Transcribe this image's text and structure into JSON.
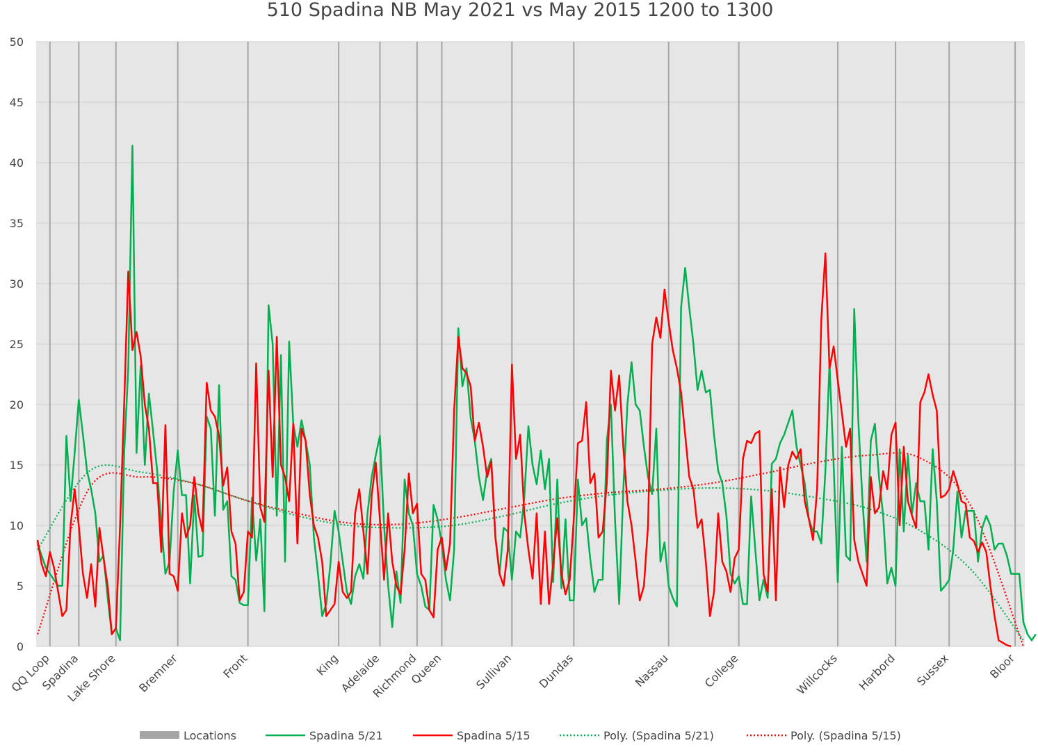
{
  "chart_data": {
    "type": "line",
    "title": "510 Spadina NB May 2021 vs May 2015 1200 to 1300",
    "xlabel": "",
    "ylabel": "",
    "ylim": [
      0,
      50
    ],
    "yticks": [
      0,
      5,
      10,
      15,
      20,
      25,
      30,
      35,
      40,
      45,
      50
    ],
    "grid": true,
    "legend_position": "bottom",
    "x_points": 240,
    "locations": [
      {
        "label": "QQ Loop",
        "index": 3
      },
      {
        "label": "Spadina",
        "index": 10
      },
      {
        "label": "Lake Shore",
        "index": 19
      },
      {
        "label": "Bremner",
        "index": 34
      },
      {
        "label": "Front",
        "index": 51
      },
      {
        "label": "King",
        "index": 73
      },
      {
        "label": "Adelaide",
        "index": 83
      },
      {
        "label": "Richmond",
        "index": 92
      },
      {
        "label": "Queen",
        "index": 98
      },
      {
        "label": "Sullivan",
        "index": 115
      },
      {
        "label": "Dundas",
        "index": 130
      },
      {
        "label": "Nassau",
        "index": 153
      },
      {
        "label": "College",
        "index": 170
      },
      {
        "label": "Willcocks",
        "index": 194
      },
      {
        "label": "Harbord",
        "index": 208
      },
      {
        "label": "Sussex",
        "index": 221
      },
      {
        "label": "Bloor",
        "index": 237
      }
    ],
    "series": [
      {
        "name": "Locations",
        "color": "#a6a6a6",
        "kind": "bar"
      },
      {
        "name": "Spadina 5/21",
        "color": "#00b050",
        "kind": "line",
        "values": [
          8.5,
          7.5,
          6.5,
          6.0,
          5.5,
          5.0,
          5.0,
          17.4,
          12.0,
          16.0,
          20.4,
          17.5,
          14.5,
          13.0,
          11.0,
          7.0,
          7.5,
          4.0,
          1.0,
          1.5,
          0.5,
          16.0,
          23.0,
          41.4,
          16.0,
          23.2,
          15.0,
          20.9,
          17.8,
          14.5,
          10.0,
          6.0,
          7.0,
          12.8,
          16.2,
          12.5,
          12.5,
          5.2,
          12.5,
          7.4,
          7.5,
          19.0,
          18.0,
          10.8,
          21.6,
          11.3,
          12.0,
          5.8,
          5.5,
          3.6,
          3.4,
          3.4,
          12.3,
          7.1,
          10.5,
          2.9,
          28.2,
          25.0,
          10.8,
          24.1,
          7.0,
          25.2,
          18.4,
          16.5,
          18.7,
          17.0,
          15.0,
          9.0,
          6.0,
          2.5,
          3.5,
          6.8,
          11.2,
          9.5,
          7.0,
          4.5,
          3.5,
          5.8,
          6.8,
          5.6,
          11.0,
          14.0,
          15.8,
          17.4,
          10.0,
          5.0,
          1.6,
          6.2,
          3.6,
          13.8,
          11.0,
          10.0,
          6.0,
          5.0,
          3.3,
          3.0,
          11.7,
          10.5,
          8.5,
          5.5,
          3.8,
          8.0,
          26.3,
          21.5,
          23.0,
          18.9,
          17.0,
          14.0,
          12.1,
          14.5,
          15.5,
          9.0,
          6.0,
          9.8,
          9.5,
          5.5,
          9.5,
          9.0,
          12.3,
          18.2,
          15.0,
          13.4,
          16.2,
          13.0,
          15.5,
          5.3,
          13.8,
          4.8,
          10.5,
          3.8,
          3.8,
          13.8,
          10.0,
          10.6,
          7.2,
          4.5,
          5.5,
          5.5,
          17.0,
          20.0,
          10.5,
          3.5,
          12.9,
          20.0,
          23.5,
          20.0,
          19.5,
          16.5,
          14.0,
          12.6,
          18.0,
          7.0,
          8.6,
          5.0,
          4.0,
          3.3,
          28.0,
          31.3,
          28.0,
          25.0,
          21.2,
          22.8,
          21.0,
          21.2,
          17.5,
          14.5,
          13.5,
          10.8,
          6.0,
          5.2,
          5.8,
          3.5,
          3.5,
          12.4,
          8.0,
          3.8,
          5.5,
          4.0,
          15.1,
          15.5,
          16.8,
          17.5,
          18.5,
          19.5,
          16.5,
          15.0,
          13.5,
          10.5,
          9.5,
          9.5,
          8.5,
          14.5,
          23.4,
          15.0,
          5.3,
          16.5,
          7.5,
          7.1,
          27.9,
          18.5,
          12.0,
          7.0,
          17.0,
          18.4,
          14.0,
          10.8,
          5.2,
          6.5,
          5.0,
          16.3,
          9.5,
          15.8,
          11.0,
          13.5,
          12.0,
          12.0,
          8.0,
          16.3,
          12.0,
          4.6,
          5.0,
          5.5,
          8.0,
          12.8,
          9.0,
          11.2,
          11.2,
          11.2,
          7.0,
          9.8,
          10.8,
          10.0,
          8.0,
          8.5,
          8.5,
          7.5,
          6.0,
          6.0,
          6.0,
          2.0,
          1.0,
          0.5,
          1.0
        ]
      },
      {
        "name": "Spadina 5/15",
        "color": "#ff0000",
        "kind": "line",
        "values": [
          8.8,
          6.8,
          5.8,
          7.8,
          6.5,
          4.5,
          2.5,
          3.0,
          10.0,
          13.0,
          10.0,
          6.0,
          4.0,
          6.8,
          3.3,
          9.8,
          7.3,
          5.0,
          1.0,
          1.5,
          10.0,
          20.0,
          31.0,
          24.5,
          26.0,
          24.0,
          20.0,
          18.0,
          13.5,
          13.5,
          7.8,
          18.3,
          6.0,
          5.8,
          4.6,
          11.0,
          9.0,
          10.0,
          14.0,
          11.0,
          9.5,
          21.8,
          19.5,
          19.0,
          17.4,
          13.3,
          14.8,
          9.5,
          8.5,
          3.8,
          4.5,
          9.5,
          9.0,
          23.4,
          11.5,
          10.3,
          22.8,
          14.0,
          25.6,
          15.0,
          14.0,
          12.0,
          18.4,
          8.5,
          18.0,
          17.0,
          12.5,
          10.0,
          9.0,
          7.0,
          2.5,
          3.0,
          3.5,
          7.0,
          4.5,
          4.0,
          4.5,
          11.0,
          13.0,
          9.5,
          6.0,
          12.5,
          15.2,
          10.5,
          5.5,
          11.0,
          7.0,
          5.0,
          4.3,
          8.0,
          14.3,
          11.0,
          11.8,
          6.0,
          5.5,
          3.0,
          2.4,
          8.0,
          9.0,
          6.3,
          8.5,
          19.5,
          25.6,
          23.0,
          22.6,
          21.5,
          17.0,
          18.5,
          16.5,
          14.0,
          15.3,
          9.0,
          6.0,
          5.0,
          8.0,
          23.3,
          15.5,
          17.5,
          11.0,
          8.0,
          5.6,
          11.0,
          3.5,
          9.5,
          3.5,
          6.8,
          10.6,
          6.0,
          4.3,
          5.5,
          10.5,
          16.8,
          17.0,
          20.2,
          13.5,
          14.3,
          9.0,
          9.5,
          13.5,
          22.8,
          19.5,
          22.4,
          16.5,
          12.0,
          10.0,
          7.0,
          3.8,
          5.0,
          10.0,
          25.0,
          27.2,
          25.5,
          29.5,
          26.8,
          24.5,
          23.0,
          21.0,
          17.5,
          14.0,
          13.0,
          9.8,
          10.5,
          7.0,
          2.5,
          4.5,
          11.0,
          7.0,
          6.2,
          4.5,
          7.3,
          8.0,
          15.5,
          17.0,
          16.8,
          17.6,
          17.8,
          6.0,
          4.5,
          13.0,
          3.8,
          14.8,
          11.5,
          15.0,
          16.1,
          15.5,
          16.3,
          12.0,
          10.5,
          8.8,
          13.0,
          27.0,
          32.5,
          23.0,
          24.8,
          22.0,
          19.3,
          16.5,
          18.0,
          8.8,
          7.0,
          6.0,
          5.0,
          14.0,
          11.0,
          11.5,
          14.5,
          13.0,
          17.5,
          18.5,
          10.0,
          16.5,
          12.0,
          10.8,
          9.8,
          20.2,
          21.0,
          22.5,
          20.8,
          19.5,
          12.3,
          12.5,
          13.0,
          14.5,
          13.4,
          12.0,
          11.8,
          9.0,
          8.7,
          7.8,
          8.6,
          7.8,
          5.0,
          2.5,
          0.5,
          0.3,
          0.1,
          0.0
        ]
      },
      {
        "name": "Poly. (Spadina 5/21)",
        "color": "#00b050",
        "kind": "trend",
        "values": [
          8.0,
          14.5,
          14.4,
          13.5,
          12.1,
          10.8,
          10.0,
          9.8,
          10.0,
          10.8,
          11.8,
          12.5,
          12.9,
          13.1,
          12.9,
          12.3,
          11.4,
          9.6,
          6.3,
          0.5
        ]
      },
      {
        "name": "Poly. (Spadina 5/15)",
        "color": "#ff0000",
        "kind": "trend",
        "values": [
          1.0,
          13.1,
          14.0,
          13.5,
          12.1,
          11.0,
          10.2,
          10.1,
          10.6,
          11.4,
          12.2,
          12.7,
          13.0,
          13.5,
          14.3,
          15.2,
          15.8,
          15.6,
          11.5,
          0.0
        ]
      }
    ]
  }
}
